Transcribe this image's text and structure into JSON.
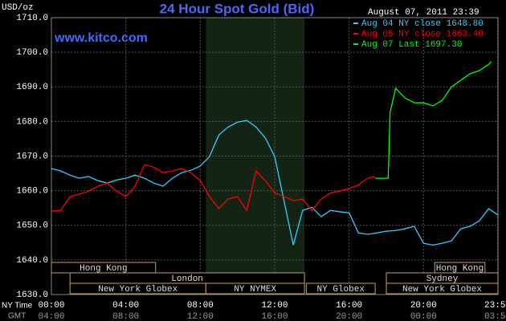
{
  "chart_data": {
    "type": "line",
    "title": "24 Hour Spot Gold (Bid)",
    "date": "August 07, 2011 23:39",
    "website": "www.kitco.com",
    "ylabel": "USD/oz",
    "xlabel": "NY Time",
    "x2label": "GMT",
    "xlim": [
      0,
      24
    ],
    "ylim": [
      1630,
      1710
    ],
    "grid": true,
    "yticks": [
      {
        "value": 1630,
        "label": "1630.0"
      },
      {
        "value": 1640,
        "label": "1640.0"
      },
      {
        "value": 1650,
        "label": "1650.0"
      },
      {
        "value": 1660,
        "label": "1660.0"
      },
      {
        "value": 1670,
        "label": "1670.0"
      },
      {
        "value": 1680,
        "label": "1680.0"
      },
      {
        "value": 1690,
        "label": "1690.0"
      },
      {
        "value": 1700,
        "label": "1700.0"
      },
      {
        "value": 1710,
        "label": "1710.0"
      }
    ],
    "xticks": [
      {
        "value": 0,
        "label": "00:00",
        "gmt": "04:00"
      },
      {
        "value": 4,
        "label": "04:00",
        "gmt": "08:00"
      },
      {
        "value": 8,
        "label": "08:00",
        "gmt": "12:00"
      },
      {
        "value": 12,
        "label": "12:00",
        "gmt": "16:00"
      },
      {
        "value": 16,
        "label": "16:00",
        "gmt": "20:00"
      },
      {
        "value": 20,
        "label": "20:00",
        "gmt": "00:00"
      },
      {
        "value": 23.98,
        "label": "23:59",
        "gmt": "03:59"
      }
    ],
    "shade": [
      8.3,
      13.6
    ],
    "sessions": [
      {
        "label": "Hong Kong",
        "start": 0,
        "end": 5.6,
        "row": 0
      },
      {
        "label": "Hong Kong",
        "start": 20.6,
        "end": 23.3,
        "row": 0
      },
      {
        "label": "London",
        "start": 1,
        "end": 13.6,
        "row": 1
      },
      {
        "label": "Sydney",
        "start": 18,
        "end": 24,
        "row": 1
      },
      {
        "label": "New York Globex",
        "start": 1,
        "end": 8.3,
        "row": 2
      },
      {
        "label": "NY NYMEX",
        "start": 8.3,
        "end": 13.6,
        "row": 2
      },
      {
        "label": "NY Globex",
        "start": 13.7,
        "end": 17.4,
        "row": 2
      },
      {
        "label": "New York Globex",
        "start": 18,
        "end": 24,
        "row": 2
      }
    ],
    "series": [
      {
        "name": "Aug 04 NY close 1648.80",
        "color": "#33ccff",
        "x": [
          0,
          0.5,
          1,
          1.5,
          2,
          2.5,
          3,
          3.5,
          4,
          4.5,
          5,
          5.5,
          6,
          6.5,
          7,
          7.5,
          8,
          8.5,
          9,
          9.5,
          10,
          10.5,
          11,
          11.5,
          12,
          12.5,
          13,
          13.5,
          14,
          14.5,
          15,
          15.5,
          16,
          16.5,
          17,
          17.5,
          18,
          18.5,
          19,
          19.5,
          20,
          20.5,
          21,
          21.5,
          22,
          22.5,
          23,
          23.5,
          24
        ],
        "values": [
          1666.4,
          1665.7,
          1664.5,
          1663.6,
          1664.1,
          1662.9,
          1662.2,
          1663.1,
          1663.6,
          1664.5,
          1663.6,
          1662.2,
          1661.3,
          1663.6,
          1665.2,
          1665.9,
          1667.1,
          1669.9,
          1676.1,
          1678.4,
          1679.8,
          1680.3,
          1678.4,
          1675.2,
          1669.9,
          1657.1,
          1644.3,
          1654.3,
          1655.2,
          1652.5,
          1654.3,
          1653.9,
          1653.6,
          1647.8,
          1647.4,
          1647.8,
          1648.3,
          1648.5,
          1649.0,
          1649.7,
          1644.8,
          1644.3,
          1644.8,
          1645.5,
          1649.0,
          1649.7,
          1651.3,
          1654.8,
          1653.0
        ]
      },
      {
        "name": "Aug 05 NY close 1663.40",
        "color": "#ff0000",
        "x": [
          0,
          0.5,
          1,
          1.5,
          2,
          2.5,
          3,
          3.5,
          4,
          4.5,
          5,
          5.5,
          6,
          6.5,
          7,
          7.5,
          8,
          8.5,
          9,
          9.5,
          10,
          10.5,
          11,
          11.5,
          12,
          12.5,
          13,
          13.5,
          14,
          14.5,
          15,
          15.5,
          16,
          16.5,
          17,
          17.4
        ],
        "values": [
          1654.1,
          1654.3,
          1658.3,
          1659.0,
          1659.9,
          1661.3,
          1662.2,
          1659.9,
          1658.3,
          1661.3,
          1667.5,
          1666.8,
          1665.2,
          1665.7,
          1666.4,
          1665.2,
          1662.9,
          1658.3,
          1654.8,
          1657.6,
          1658.3,
          1654.3,
          1665.7,
          1662.9,
          1659.4,
          1658.3,
          1657.1,
          1657.6,
          1654.3,
          1657.6,
          1659.4,
          1659.9,
          1660.6,
          1661.7,
          1663.6,
          1664.1
        ]
      },
      {
        "name": "Aug 07 Last 1697.30",
        "color": "#00ff00",
        "x": [
          17.4,
          18.1,
          18.2,
          18.5,
          19,
          19.5,
          20,
          20.5,
          21,
          21.5,
          22,
          22.5,
          23,
          23.5,
          23.65
        ],
        "values": [
          1663.6,
          1663.6,
          1682.6,
          1689.6,
          1686.8,
          1685.4,
          1685.4,
          1684.5,
          1686.1,
          1690.0,
          1691.9,
          1693.8,
          1694.7,
          1696.5,
          1697.3
        ]
      }
    ]
  }
}
